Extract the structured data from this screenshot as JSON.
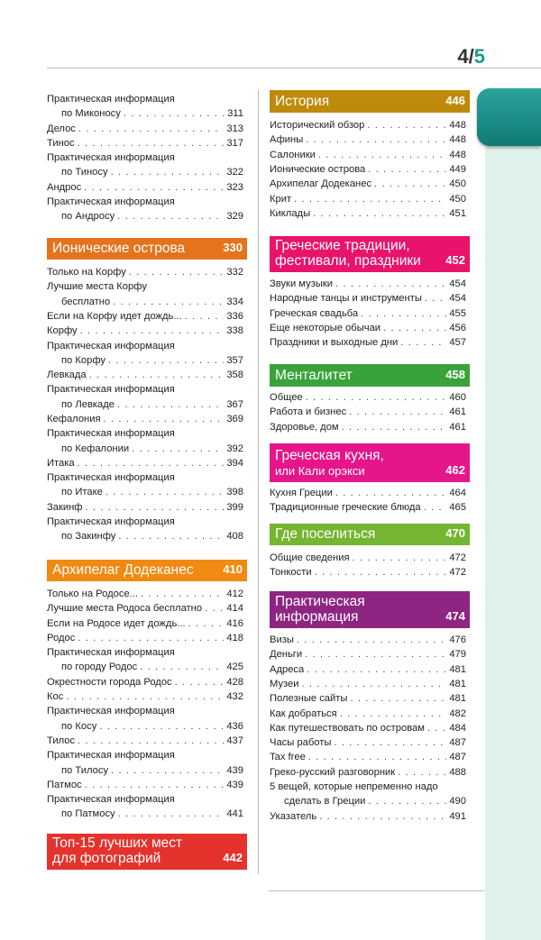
{
  "header": {
    "page_current": "4",
    "page_total": "5"
  },
  "colors": {
    "ionian": "#e5731e",
    "dodecanese": "#f08a12",
    "top15": "#e5322d",
    "history": "#bf8a0c",
    "traditions": "#e8136b",
    "mentality": "#3aa23a",
    "cuisine": "#e5168a",
    "where": "#74b531",
    "practical": "#8e2582",
    "tab": "#1a8f88",
    "strip": "#dff2ea"
  },
  "left_intro": [
    {
      "lines": [
        "Практическая информация",
        "по Миконосу"
      ],
      "page": "311"
    },
    {
      "lines": [
        "Делос"
      ],
      "page": "313"
    },
    {
      "lines": [
        "Тинос"
      ],
      "page": "317"
    },
    {
      "lines": [
        "Практическая информация",
        "по Тиносу"
      ],
      "page": "322"
    },
    {
      "lines": [
        "Андрос"
      ],
      "page": "323"
    },
    {
      "lines": [
        "Практическая информация",
        "по Андросу"
      ],
      "page": "329"
    }
  ],
  "ionian": {
    "title": [
      "Ионические острова"
    ],
    "page": "330",
    "items": [
      {
        "lines": [
          "Только на Корфу"
        ],
        "page": "332"
      },
      {
        "lines": [
          "Лучшие места Корфу",
          "бесплатно"
        ],
        "page": "334"
      },
      {
        "lines": [
          "Если на Корфу идет дождь..."
        ],
        "page": "336"
      },
      {
        "lines": [
          "Корфу"
        ],
        "page": "338"
      },
      {
        "lines": [
          "Практическая информация",
          "по Корфу"
        ],
        "page": "357"
      },
      {
        "lines": [
          "Левкада"
        ],
        "page": "358"
      },
      {
        "lines": [
          "Практическая информация",
          "по Левкаде"
        ],
        "page": "367"
      },
      {
        "lines": [
          "Кефалония"
        ],
        "page": "369"
      },
      {
        "lines": [
          "Практическая информация",
          "по Кефалонии"
        ],
        "page": "392"
      },
      {
        "lines": [
          "Итака"
        ],
        "page": "394"
      },
      {
        "lines": [
          "Практическая информация",
          "по Итаке"
        ],
        "page": "398"
      },
      {
        "lines": [
          "Закинф"
        ],
        "page": "399"
      },
      {
        "lines": [
          "Практическая информация",
          "по Закинфу"
        ],
        "page": "408"
      }
    ]
  },
  "dodecanese": {
    "title": [
      "Архипелаг Додеканес"
    ],
    "page": "410",
    "items": [
      {
        "lines": [
          "Только на Родосе..."
        ],
        "page": "412"
      },
      {
        "lines": [
          "Лучшие места Родоса бесплатно"
        ],
        "page": "414"
      },
      {
        "lines": [
          "Если на Родосе идет дождь..."
        ],
        "page": "416"
      },
      {
        "lines": [
          "Родос"
        ],
        "page": "418"
      },
      {
        "lines": [
          "Практическая информация",
          "по городу Родос"
        ],
        "page": "425"
      },
      {
        "lines": [
          "Окрестности города Родос"
        ],
        "page": "428"
      },
      {
        "lines": [
          "Кос"
        ],
        "page": "432"
      },
      {
        "lines": [
          "Практическая информация",
          "по Косу"
        ],
        "page": "436"
      },
      {
        "lines": [
          "Тилос"
        ],
        "page": "437"
      },
      {
        "lines": [
          "Практическая информация",
          "по Тилосу"
        ],
        "page": "439"
      },
      {
        "lines": [
          "Патмос"
        ],
        "page": "439"
      },
      {
        "lines": [
          "Практическая информация",
          "по Патмосу"
        ],
        "page": "441"
      }
    ]
  },
  "top15": {
    "title": [
      "Топ-15 лучших мест",
      "для фотографий"
    ],
    "page": "442"
  },
  "history": {
    "title": [
      "История"
    ],
    "page": "446",
    "items": [
      {
        "lines": [
          "Исторический обзор"
        ],
        "page": "448"
      },
      {
        "lines": [
          "Афины"
        ],
        "page": "448"
      },
      {
        "lines": [
          "Салоники"
        ],
        "page": "448"
      },
      {
        "lines": [
          "Ионические острова"
        ],
        "page": "449"
      },
      {
        "lines": [
          "Архипелаг Додеканес"
        ],
        "page": "450"
      },
      {
        "lines": [
          "Крит"
        ],
        "page": "450"
      },
      {
        "lines": [
          "Киклады"
        ],
        "page": "451"
      }
    ]
  },
  "traditions": {
    "title": [
      "Греческие традиции,",
      "фестивали, праздники"
    ],
    "page": "452",
    "items": [
      {
        "lines": [
          "Звуки музыки"
        ],
        "page": "454"
      },
      {
        "lines": [
          "Народные танцы и инструменты"
        ],
        "page": "454"
      },
      {
        "lines": [
          "Греческая свадьба"
        ],
        "page": "455"
      },
      {
        "lines": [
          "Еще некоторые обычаи"
        ],
        "page": "456"
      },
      {
        "lines": [
          "Праздники и выходные дни"
        ],
        "page": "457"
      }
    ]
  },
  "mentality": {
    "title": [
      "Менталитет"
    ],
    "page": "458",
    "items": [
      {
        "lines": [
          "Общее"
        ],
        "page": "460"
      },
      {
        "lines": [
          "Работа и бизнес"
        ],
        "page": "461"
      },
      {
        "lines": [
          "Здоровье, дом"
        ],
        "page": "461"
      }
    ]
  },
  "cuisine": {
    "title": [
      "Греческая кухня,"
    ],
    "subtitle": "или Кали орэкси",
    "page": "462",
    "items": [
      {
        "lines": [
          "Кухня Греции"
        ],
        "page": "464"
      },
      {
        "lines": [
          "Традиционные греческие блюда"
        ],
        "page": "465"
      }
    ]
  },
  "where": {
    "title": [
      "Где поселиться"
    ],
    "page": "470",
    "items": [
      {
        "lines": [
          "Общие сведения"
        ],
        "page": "472"
      },
      {
        "lines": [
          "Тонкости"
        ],
        "page": "472"
      }
    ]
  },
  "practical": {
    "title": [
      "Практическая",
      "информация"
    ],
    "page": "474",
    "items": [
      {
        "lines": [
          "Визы"
        ],
        "page": "476"
      },
      {
        "lines": [
          "Деньги"
        ],
        "page": "479"
      },
      {
        "lines": [
          "Адреса"
        ],
        "page": "481"
      },
      {
        "lines": [
          "Музеи"
        ],
        "page": "481"
      },
      {
        "lines": [
          "Полезные сайты"
        ],
        "page": "481"
      },
      {
        "lines": [
          "Как добраться"
        ],
        "page": "482"
      },
      {
        "lines": [
          "Как путешествовать по островам"
        ],
        "page": "484"
      },
      {
        "lines": [
          "Часы работы"
        ],
        "page": "487"
      },
      {
        "lines": [
          "Tax free"
        ],
        "page": "487"
      },
      {
        "lines": [
          "Греко-русский разговорник"
        ],
        "page": "488"
      },
      {
        "lines": [
          "5 вещей, которые непременно надо",
          "сделать в Греции"
        ],
        "page": "490"
      },
      {
        "lines": [
          "Указатель"
        ],
        "page": "491"
      }
    ]
  }
}
